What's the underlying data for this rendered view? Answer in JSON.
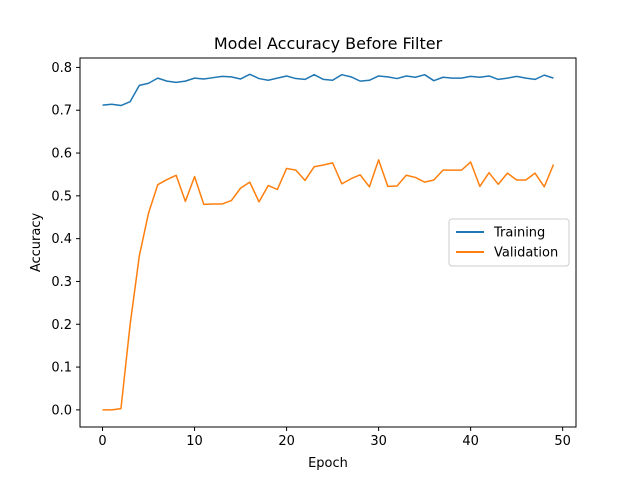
{
  "chart_data": {
    "type": "line",
    "title": "Model Accuracy Before Filter",
    "xlabel": "Epoch",
    "ylabel": "Accuracy",
    "xlim": [
      -2.45,
      51.45
    ],
    "ylim": [
      -0.04,
      0.822
    ],
    "xticks": [
      0,
      10,
      20,
      30,
      40,
      50
    ],
    "xtick_labels": [
      "0",
      "10",
      "20",
      "30",
      "40",
      "50"
    ],
    "yticks": [
      0.0,
      0.1,
      0.2,
      0.3,
      0.4,
      0.5,
      0.6,
      0.7,
      0.8
    ],
    "ytick_labels": [
      "0.0",
      "0.1",
      "0.2",
      "0.3",
      "0.4",
      "0.5",
      "0.6",
      "0.7",
      "0.8"
    ],
    "grid": false,
    "legend_position": "center-right",
    "x": [
      0,
      1,
      2,
      3,
      4,
      5,
      6,
      7,
      8,
      9,
      10,
      11,
      12,
      13,
      14,
      15,
      16,
      17,
      18,
      19,
      20,
      21,
      22,
      23,
      24,
      25,
      26,
      27,
      28,
      29,
      30,
      31,
      32,
      33,
      34,
      35,
      36,
      37,
      38,
      39,
      40,
      41,
      42,
      43,
      44,
      45,
      46,
      47,
      48,
      49
    ],
    "series": [
      {
        "name": "Training",
        "color": "#1f77b4",
        "values": [
          0.712,
          0.714,
          0.711,
          0.72,
          0.758,
          0.763,
          0.775,
          0.768,
          0.765,
          0.768,
          0.775,
          0.773,
          0.776,
          0.779,
          0.778,
          0.773,
          0.784,
          0.774,
          0.77,
          0.775,
          0.78,
          0.774,
          0.772,
          0.783,
          0.772,
          0.77,
          0.783,
          0.778,
          0.768,
          0.77,
          0.78,
          0.778,
          0.774,
          0.78,
          0.777,
          0.783,
          0.769,
          0.777,
          0.775,
          0.775,
          0.779,
          0.777,
          0.78,
          0.772,
          0.775,
          0.779,
          0.775,
          0.772,
          0.782,
          0.775
        ]
      },
      {
        "name": "Validation",
        "color": "#ff7f0e",
        "values": [
          0.0,
          0.0,
          0.003,
          0.2,
          0.36,
          0.46,
          0.526,
          0.538,
          0.548,
          0.487,
          0.545,
          0.48,
          0.481,
          0.481,
          0.489,
          0.518,
          0.532,
          0.486,
          0.524,
          0.515,
          0.564,
          0.56,
          0.536,
          0.568,
          0.572,
          0.577,
          0.528,
          0.54,
          0.549,
          0.521,
          0.584,
          0.522,
          0.523,
          0.548,
          0.543,
          0.532,
          0.537,
          0.56,
          0.56,
          0.56,
          0.579,
          0.522,
          0.554,
          0.527,
          0.553,
          0.537,
          0.537,
          0.553,
          0.521,
          0.573
        ]
      }
    ]
  }
}
